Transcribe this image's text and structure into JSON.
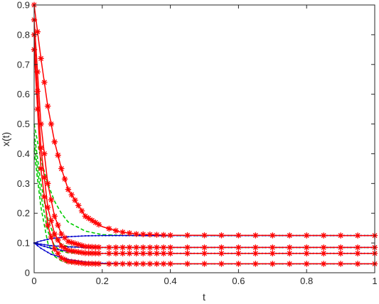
{
  "chart_data": {
    "type": "line",
    "title": "",
    "xlabel": "t",
    "ylabel": "x(t)",
    "xlim": [
      0,
      1
    ],
    "ylim": [
      0,
      0.9
    ],
    "x_ticks": [
      "0",
      "0.2",
      "0.4",
      "0.6",
      "0.8",
      "1"
    ],
    "y_ticks": [
      "0",
      "0.1",
      "0.2",
      "0.3",
      "0.4",
      "0.5",
      "0.6",
      "0.7",
      "0.8",
      "0.9"
    ],
    "grid": false,
    "legend": "none",
    "colors": {
      "red": "#ff0000",
      "green": "#00cc00",
      "blue": "#0000cc",
      "axis": "#262626"
    },
    "series": [
      {
        "color": "red",
        "style": "solid-asterisk",
        "x": [
          0,
          0.02,
          0.04,
          0.06,
          0.08,
          0.1,
          0.15,
          0.2,
          0.25,
          0.3,
          0.4,
          1
        ],
        "y": [
          0.9,
          0.72,
          0.56,
          0.44,
          0.35,
          0.28,
          0.19,
          0.155,
          0.138,
          0.13,
          0.126,
          0.125
        ]
      },
      {
        "color": "red",
        "style": "solid-asterisk",
        "x": [
          0,
          0.02,
          0.04,
          0.06,
          0.08,
          0.1,
          0.15,
          0.2,
          0.3,
          1
        ],
        "y": [
          0.85,
          0.5,
          0.3,
          0.19,
          0.13,
          0.105,
          0.088,
          0.085,
          0.085,
          0.085
        ]
      },
      {
        "color": "red",
        "style": "solid-asterisk",
        "x": [
          0,
          0.02,
          0.04,
          0.06,
          0.08,
          0.1,
          0.15,
          0.2,
          0.3,
          1
        ],
        "y": [
          0.8,
          0.42,
          0.22,
          0.13,
          0.09,
          0.075,
          0.066,
          0.065,
          0.065,
          0.065
        ]
      },
      {
        "color": "red",
        "style": "solid-asterisk",
        "x": [
          0,
          0.02,
          0.04,
          0.06,
          0.08,
          0.1,
          0.15,
          0.2,
          0.3,
          1
        ],
        "y": [
          0.75,
          0.35,
          0.16,
          0.08,
          0.05,
          0.038,
          0.031,
          0.03,
          0.03,
          0.03
        ]
      },
      {
        "color": "green",
        "style": "dashed",
        "x": [
          0,
          0.02,
          0.04,
          0.06,
          0.08,
          0.1,
          0.15,
          0.2,
          0.25,
          0.3,
          0.4,
          1
        ],
        "y": [
          0.5,
          0.38,
          0.3,
          0.24,
          0.2,
          0.17,
          0.14,
          0.128,
          0.126,
          0.125,
          0.125,
          0.125
        ]
      },
      {
        "color": "green",
        "style": "dashed",
        "x": [
          0,
          0.02,
          0.04,
          0.06,
          0.08,
          0.1,
          0.15,
          0.2,
          1
        ],
        "y": [
          0.47,
          0.3,
          0.18,
          0.12,
          0.095,
          0.088,
          0.085,
          0.085,
          0.085
        ]
      },
      {
        "color": "green",
        "style": "dashed",
        "x": [
          0,
          0.02,
          0.04,
          0.06,
          0.08,
          0.1,
          0.15,
          0.2,
          1
        ],
        "y": [
          0.44,
          0.26,
          0.14,
          0.09,
          0.072,
          0.067,
          0.065,
          0.065,
          0.065
        ]
      },
      {
        "color": "green",
        "style": "dashed",
        "x": [
          0,
          0.02,
          0.04,
          0.06,
          0.08,
          0.1,
          0.15,
          0.2,
          1
        ],
        "y": [
          0.41,
          0.22,
          0.1,
          0.055,
          0.04,
          0.033,
          0.03,
          0.03,
          0.03
        ]
      },
      {
        "color": "blue",
        "style": "solid-dot",
        "x": [
          0,
          0.02,
          0.05,
          0.1,
          0.15,
          0.2,
          0.3,
          1
        ],
        "y": [
          0.1,
          0.107,
          0.115,
          0.121,
          0.124,
          0.125,
          0.125,
          0.125
        ]
      },
      {
        "color": "blue",
        "style": "solid-dot",
        "x": [
          0,
          0.02,
          0.05,
          0.1,
          0.15,
          0.2,
          0.3,
          1
        ],
        "y": [
          0.1,
          0.096,
          0.091,
          0.087,
          0.085,
          0.085,
          0.085,
          0.085
        ]
      },
      {
        "color": "blue",
        "style": "solid-dot",
        "x": [
          0,
          0.02,
          0.05,
          0.1,
          0.15,
          0.2,
          0.3,
          1
        ],
        "y": [
          0.1,
          0.092,
          0.082,
          0.072,
          0.067,
          0.065,
          0.065,
          0.065
        ]
      },
      {
        "color": "blue",
        "style": "solid-dot",
        "x": [
          0,
          0.02,
          0.05,
          0.1,
          0.15,
          0.2,
          0.3,
          1
        ],
        "y": [
          0.1,
          0.082,
          0.062,
          0.045,
          0.036,
          0.032,
          0.03,
          0.03
        ]
      }
    ]
  }
}
